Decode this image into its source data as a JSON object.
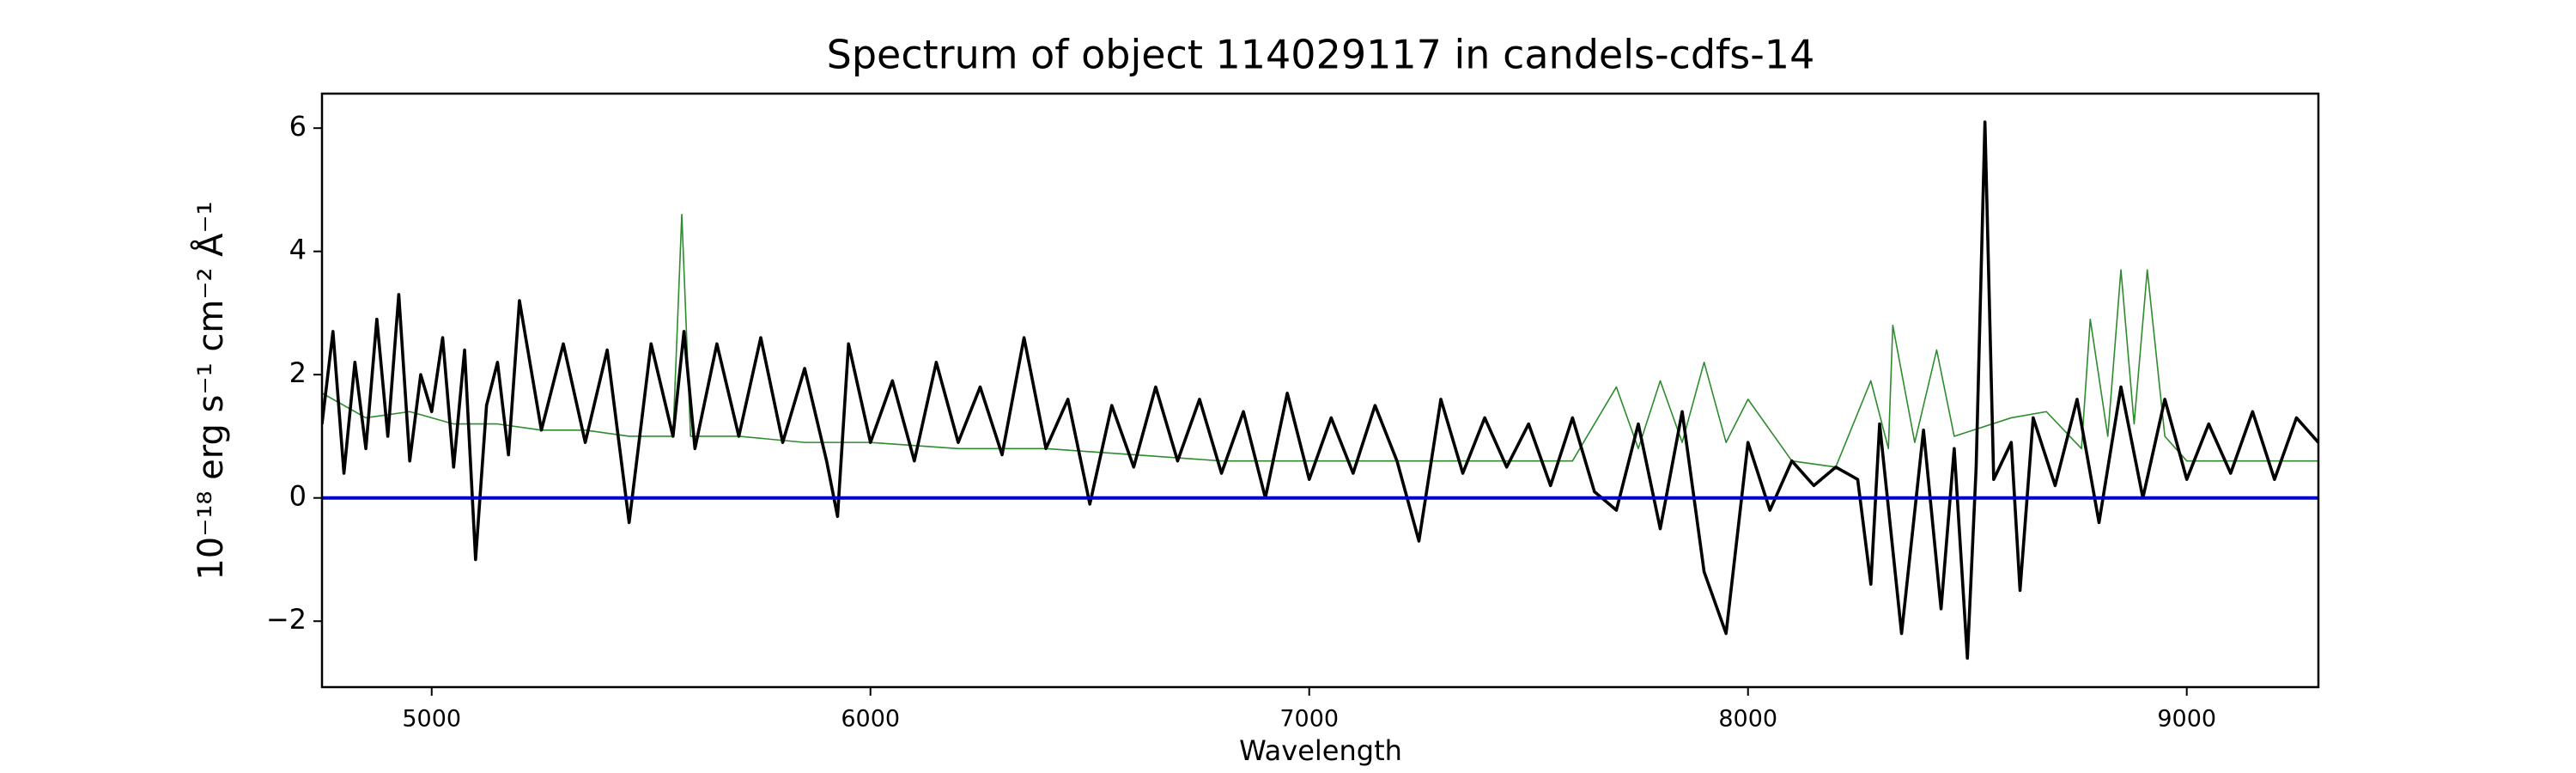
{
  "chart_data": {
    "type": "line",
    "title": "Spectrum of object 114029117 in candels-cdfs-14",
    "x_label": "Wavelength",
    "y_label": "10⁻¹⁸ erg s⁻¹ cm⁻² Å⁻¹",
    "xlim": [
      4750,
      9300
    ],
    "ylim": [
      -3.07,
      6.56
    ],
    "xticks": [
      5000,
      6000,
      7000,
      8000,
      9000
    ],
    "yticks": [
      {
        "value": -2,
        "label": "−2"
      },
      0,
      2,
      4,
      6
    ],
    "series": [
      {
        "color": "#2e8b2e",
        "x": [
          4750,
          4850,
          4950,
          5050,
          5150,
          5250,
          5350,
          5450,
          5550,
          5570,
          5590,
          5700,
          5850,
          6000,
          6200,
          6400,
          6600,
          6800,
          7000,
          7200,
          7400,
          7600,
          7700,
          7750,
          7800,
          7850,
          7900,
          7950,
          8000,
          8100,
          8200,
          8280,
          8320,
          8330,
          8380,
          8430,
          8470,
          8600,
          8680,
          8760,
          8780,
          8820,
          8850,
          8880,
          8910,
          8950,
          9000,
          9150,
          9300
        ],
        "values": [
          1.7,
          1.3,
          1.4,
          1.2,
          1.2,
          1.1,
          1.1,
          1.0,
          1.0,
          4.6,
          1.0,
          1.0,
          0.9,
          0.9,
          0.8,
          0.8,
          0.7,
          0.6,
          0.6,
          0.6,
          0.6,
          0.6,
          1.8,
          0.8,
          1.9,
          0.9,
          2.2,
          0.9,
          1.6,
          0.6,
          0.5,
          1.9,
          0.8,
          2.8,
          0.9,
          2.4,
          1.0,
          1.3,
          1.4,
          0.8,
          2.9,
          1.0,
          3.7,
          1.2,
          3.7,
          1.0,
          0.6,
          0.6,
          0.6
        ]
      },
      {
        "color": "#000000",
        "x": [
          4750,
          4775,
          4800,
          4825,
          4850,
          4875,
          4900,
          4925,
          4950,
          4975,
          5000,
          5025,
          5050,
          5075,
          5100,
          5125,
          5150,
          5175,
          5200,
          5250,
          5300,
          5350,
          5400,
          5450,
          5500,
          5550,
          5575,
          5600,
          5650,
          5700,
          5750,
          5800,
          5850,
          5900,
          5925,
          5950,
          6000,
          6050,
          6100,
          6150,
          6200,
          6250,
          6300,
          6350,
          6400,
          6450,
          6500,
          6550,
          6600,
          6650,
          6700,
          6750,
          6800,
          6850,
          6900,
          6950,
          7000,
          7050,
          7100,
          7150,
          7200,
          7250,
          7300,
          7350,
          7400,
          7450,
          7500,
          7550,
          7600,
          7650,
          7700,
          7750,
          7800,
          7850,
          7900,
          7950,
          8000,
          8050,
          8100,
          8150,
          8200,
          8250,
          8280,
          8300,
          8350,
          8400,
          8440,
          8470,
          8500,
          8520,
          8540,
          8560,
          8600,
          8620,
          8650,
          8700,
          8750,
          8800,
          8850,
          8900,
          8950,
          9000,
          9050,
          9100,
          9150,
          9200,
          9250,
          9300
        ],
        "values": [
          1.2,
          2.7,
          0.4,
          2.2,
          0.8,
          2.9,
          1.0,
          3.3,
          0.6,
          2.0,
          1.4,
          2.6,
          0.5,
          2.4,
          -1.0,
          1.5,
          2.2,
          0.7,
          3.2,
          1.1,
          2.5,
          0.9,
          2.4,
          -0.4,
          2.5,
          1.0,
          2.7,
          0.8,
          2.5,
          1.0,
          2.6,
          0.9,
          2.1,
          0.6,
          -0.3,
          2.5,
          0.9,
          1.9,
          0.6,
          2.2,
          0.9,
          1.8,
          0.7,
          2.6,
          0.8,
          1.6,
          -0.1,
          1.5,
          0.5,
          1.8,
          0.6,
          1.6,
          0.4,
          1.4,
          0.0,
          1.7,
          0.3,
          1.3,
          0.4,
          1.5,
          0.6,
          -0.7,
          1.6,
          0.4,
          1.3,
          0.5,
          1.2,
          0.2,
          1.3,
          0.1,
          -0.2,
          1.2,
          -0.5,
          1.4,
          -1.2,
          -2.2,
          0.9,
          -0.2,
          0.6,
          0.2,
          0.5,
          0.3,
          -1.4,
          1.2,
          -2.2,
          1.1,
          -1.8,
          0.8,
          -2.6,
          0.5,
          6.1,
          0.3,
          0.9,
          -1.5,
          1.3,
          0.2,
          1.6,
          -0.4,
          1.8,
          0.0,
          1.6,
          0.3,
          1.2,
          0.4,
          1.4,
          0.3,
          1.3,
          0.9
        ]
      },
      {
        "color": "#0000cc",
        "x": [
          4750,
          9300
        ],
        "values": [
          0,
          0
        ]
      }
    ]
  }
}
